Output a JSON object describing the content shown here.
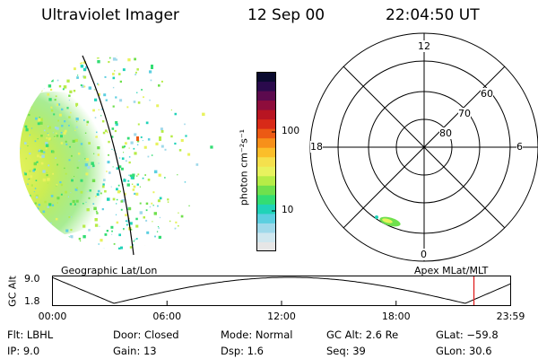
{
  "header": {
    "title": "Ultraviolet Imager",
    "date": "12 Sep 00",
    "time": "22:04:50 UT"
  },
  "colorbar": {
    "unit_label": "photon cm⁻²s⁻¹",
    "ticks": [
      "100",
      "10"
    ],
    "colors": [
      "#e6e6e6",
      "#cfe7ef",
      "#9fd9ea",
      "#5ccfe0",
      "#20d3b8",
      "#33dd73",
      "#6fe04d",
      "#b6ec47",
      "#e8f25e",
      "#f5e04d",
      "#fbbe2a",
      "#f7901a",
      "#ec5a14",
      "#d82a18",
      "#b81522",
      "#8e0d3c",
      "#5c0a4e",
      "#2a0a4c",
      "#0a0a2e"
    ]
  },
  "left_panel": {
    "caption": "Geographic Lat/Lon"
  },
  "polar_plot": {
    "caption": "Apex MLat/MLT",
    "mlt_labels": {
      "top": "12",
      "left": "18",
      "right": "6",
      "bottom": "0"
    },
    "lat_labels": [
      "60",
      "70",
      "80"
    ]
  },
  "timeline": {
    "axis_label": "GC Alt",
    "y_top": "9.0",
    "y_bottom": "1.8",
    "x_ticks": [
      "00:00",
      "06:00",
      "12:00",
      "18:00",
      "23:59"
    ],
    "current_time_fraction": 0.919
  },
  "info": {
    "flt": "Flt: LBHL",
    "ip": "IP:  9.0",
    "door": "Door: Closed",
    "gain": "Gain: 13",
    "mode": "Mode: Normal",
    "dsp": "Dsp:    1.6",
    "gcalt": "GC Alt: 2.6 Re",
    "seq": "Seq: 39",
    "glat": "GLat: −59.8",
    "glon": "GLon:  30.6"
  }
}
